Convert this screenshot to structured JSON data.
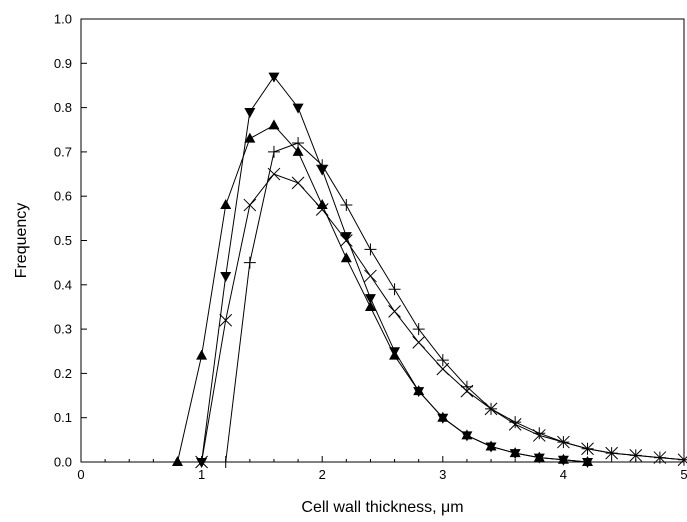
{
  "chart_data": {
    "type": "line",
    "xlabel": "Cell wall thickness, μm",
    "ylabel": "Frequency",
    "xlim": [
      0,
      5
    ],
    "ylim": [
      0,
      1.0
    ],
    "xticks": [
      "0",
      "1",
      "2",
      "3",
      "4",
      "5"
    ],
    "yticks": [
      "0.0",
      "0.1",
      "0.2",
      "0.3",
      "0.4",
      "0.5",
      "0.6",
      "0.7",
      "0.8",
      "0.9",
      "1.0"
    ],
    "grid": false,
    "series": [
      {
        "marker": "triangle-up",
        "x": [
          0.8,
          1.0,
          1.2,
          1.4,
          1.6,
          1.8,
          2.0,
          2.2,
          2.4,
          2.6,
          2.8,
          3.0,
          3.2,
          3.4,
          3.6,
          3.8,
          4.0,
          4.2
        ],
        "y": [
          0.0,
          0.24,
          0.58,
          0.73,
          0.76,
          0.7,
          0.58,
          0.46,
          0.35,
          0.24,
          0.16,
          0.1,
          0.06,
          0.035,
          0.02,
          0.01,
          0.005,
          0.0
        ]
      },
      {
        "marker": "triangle-down",
        "x": [
          1.0,
          1.2,
          1.4,
          1.6,
          1.8,
          2.0,
          2.2,
          2.4,
          2.6,
          2.8,
          3.0,
          3.2,
          3.4,
          3.6,
          3.8,
          4.0,
          4.2
        ],
        "y": [
          0.0,
          0.42,
          0.79,
          0.87,
          0.8,
          0.66,
          0.51,
          0.37,
          0.25,
          0.16,
          0.1,
          0.06,
          0.035,
          0.02,
          0.01,
          0.005,
          0.0
        ]
      },
      {
        "marker": "plus",
        "x": [
          1.2,
          1.4,
          1.6,
          1.8,
          2.0,
          2.2,
          2.4,
          2.6,
          2.8,
          3.0,
          3.2,
          3.4,
          3.6,
          3.8,
          4.0,
          4.2,
          4.4,
          4.6,
          4.8,
          5.0
        ],
        "y": [
          0.0,
          0.45,
          0.7,
          0.72,
          0.67,
          0.58,
          0.48,
          0.39,
          0.3,
          0.23,
          0.17,
          0.12,
          0.09,
          0.065,
          0.045,
          0.03,
          0.02,
          0.015,
          0.01,
          0.005
        ]
      },
      {
        "marker": "x",
        "x": [
          1.0,
          1.2,
          1.4,
          1.6,
          1.8,
          2.0,
          2.2,
          2.4,
          2.6,
          2.8,
          3.0,
          3.2,
          3.4,
          3.6,
          3.8,
          4.0,
          4.2,
          4.4,
          4.6,
          4.8,
          5.0
        ],
        "y": [
          0.0,
          0.32,
          0.58,
          0.65,
          0.63,
          0.57,
          0.5,
          0.42,
          0.34,
          0.27,
          0.21,
          0.16,
          0.12,
          0.085,
          0.06,
          0.045,
          0.03,
          0.02,
          0.015,
          0.01,
          0.005
        ]
      }
    ]
  }
}
